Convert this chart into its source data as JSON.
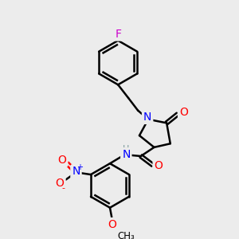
{
  "background_color": "#ececec",
  "bond_color": "#000000",
  "atom_colors": {
    "F": "#cc00cc",
    "N": "#0000ff",
    "O": "#ff0000",
    "C": "#000000",
    "H": "#7a9a9a"
  },
  "figsize": [
    3.0,
    3.0
  ],
  "dpi": 100
}
